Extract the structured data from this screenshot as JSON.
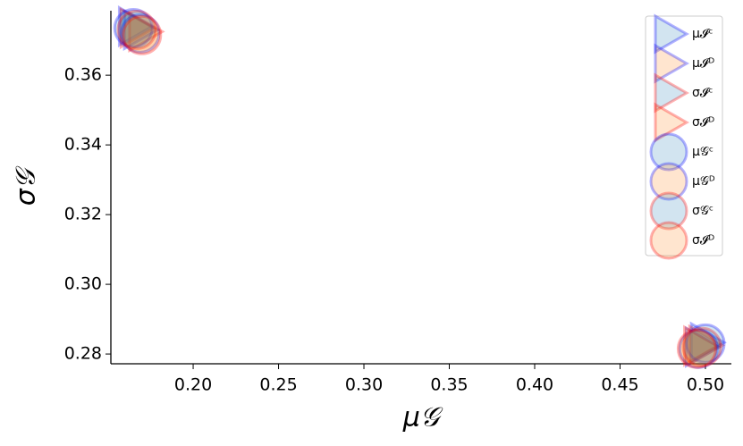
{
  "chart_data": {
    "type": "scatter",
    "x_label": "μ𝒢",
    "y_label": "σ𝒢",
    "xlim": [
      0.1518,
      0.5152
    ],
    "ylim": [
      0.2772,
      0.3785
    ],
    "xticks": [
      {
        "value": 0.2,
        "label": "0.20"
      },
      {
        "value": 0.25,
        "label": "0.25"
      },
      {
        "value": 0.3,
        "label": "0.30"
      },
      {
        "value": 0.35,
        "label": "0.35"
      },
      {
        "value": 0.4,
        "label": "0.40"
      },
      {
        "value": 0.45,
        "label": "0.45"
      },
      {
        "value": 0.5,
        "label": "0.50"
      }
    ],
    "yticks": [
      0.28,
      {
        "value": 0.3,
        "label": "0.30"
      },
      0.32,
      0.34,
      0.36
    ],
    "legend": "upper right",
    "series": [
      {
        "name": "μ𝓘ᶜ",
        "marker": "triangle",
        "color": "#1f77b4",
        "edgecolor": "#0000ff",
        "x": [
          0.165,
          0.5
        ],
        "y": [
          0.374,
          0.2833
        ]
      },
      {
        "name": "μ𝓘ᴰ",
        "marker": "triangle",
        "color": "#ff7f0e",
        "edgecolor": "#0000ff",
        "x": [
          0.168,
          0.497
        ],
        "y": [
          0.373,
          0.282
        ]
      },
      {
        "name": "σ𝓘ᶜ",
        "marker": "triangle",
        "color": "#1f77b4",
        "edgecolor": "#ff0000",
        "x": [
          0.166,
          0.499
        ],
        "y": [
          0.3735,
          0.2825
        ]
      },
      {
        "name": "σ𝓘ᴰ",
        "marker": "triangle",
        "color": "#ff7f0e",
        "edgecolor": "#ff0000",
        "x": [
          0.171,
          0.496
        ],
        "y": [
          0.3725,
          0.2823
        ]
      },
      {
        "name": "μ𝒢ᶜ",
        "marker": "circle",
        "color": "#1f77b4",
        "edgecolor": "#0000ff",
        "x": [
          0.165,
          0.5
        ],
        "y": [
          0.3735,
          0.283
        ]
      },
      {
        "name": "μ𝒢ᴰ",
        "marker": "circle",
        "color": "#ff7f0e",
        "edgecolor": "#0000ff",
        "x": [
          0.169,
          0.496
        ],
        "y": [
          0.372,
          0.2815
        ]
      },
      {
        "name": "σ𝒢ᶜ",
        "marker": "circle",
        "color": "#1f77b4",
        "edgecolor": "#ff0000",
        "x": [
          0.167,
          0.498
        ],
        "y": [
          0.373,
          0.282
        ]
      },
      {
        "name": "σ𝓘ᴰ",
        "marker": "circle",
        "color": "#ff7f0e",
        "edgecolor": "#ff0000",
        "x": [
          0.17,
          0.495
        ],
        "y": [
          0.3715,
          0.2815
        ]
      }
    ]
  }
}
